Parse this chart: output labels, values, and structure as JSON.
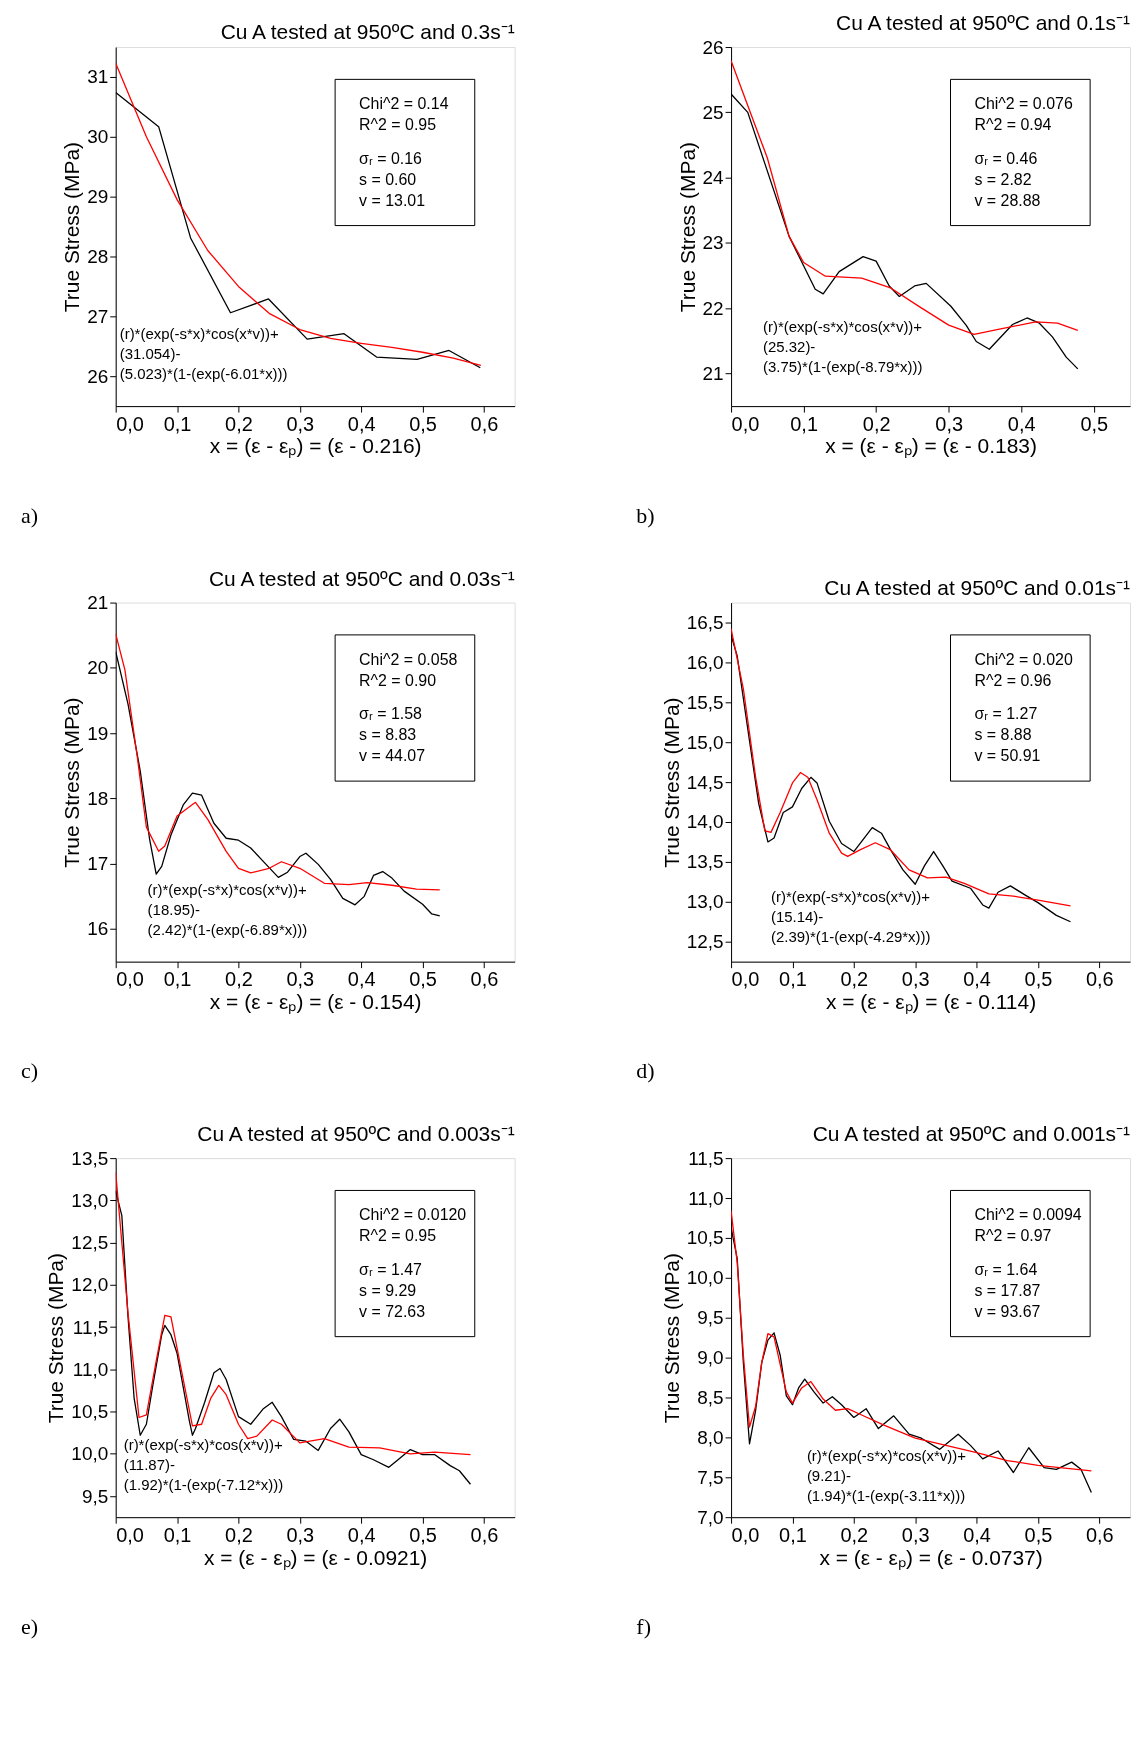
{
  "chart_data": [
    {
      "type": "line",
      "title": "Cu A tested at 950ºC and 0.3s⁻¹",
      "xlabel": "x = (ε  - εₚ) = (ε - 0.216)",
      "ylabel": "True Stress (MPa)",
      "xlim": [
        0,
        0.65
      ],
      "ylim": [
        25.5,
        31.5
      ],
      "xticks": [
        {
          "value": 0,
          "label": "0,0"
        },
        {
          "value": 0.1,
          "label": "0,1"
        },
        {
          "value": 0.2,
          "label": "0,2"
        },
        {
          "value": 0.3,
          "label": "0,3"
        },
        {
          "value": 0.4,
          "label": "0,4"
        },
        {
          "value": 0.5,
          "label": "0,5"
        },
        {
          "value": 0.6,
          "label": "0,6"
        }
      ],
      "yticks": [
        26,
        27,
        28,
        29,
        30,
        31
      ],
      "grid": false,
      "legend": false,
      "marker": "none",
      "line_style": "solid",
      "series": [
        {
          "color": "#000000",
          "x": [
            0,
            0.07,
            0.122,
            0.187,
            0.249,
            0.312,
            0.372,
            0.425,
            0.491,
            0.543,
            0.594
          ],
          "values": [
            30.74,
            30.17,
            28.31,
            27.06,
            27.29,
            26.62,
            26.71,
            26.32,
            26.28,
            26.43,
            26.14
          ]
        },
        {
          "color": "#ff0000",
          "x": [
            0,
            0.05,
            0.1,
            0.15,
            0.2,
            0.25,
            0.3,
            0.35,
            0.4,
            0.45,
            0.5,
            0.55,
            0.595
          ],
          "values": [
            31.23,
            30.0,
            28.95,
            28.1,
            27.5,
            27.05,
            26.78,
            26.63,
            26.55,
            26.48,
            26.4,
            26.3,
            26.18
          ]
        }
      ],
      "annotations": [
        "Chi^2 = 0.14",
        "R^2 = 0.95",
        "σᵣ = 0.16",
        "s = 0.60",
        "v = 13.01",
        "(r)*(exp(-s*x)*cos(x*v))+",
        "(31.054)-",
        "(5.023)*(1-(exp(-6.01*x)))",
        "a)"
      ]
    },
    {
      "type": "line",
      "title": "Cu A tested at 950ºC and 0.1s⁻¹",
      "xlabel": "x = (ε  - εₚ) = (ε - 0.183)",
      "ylabel": "True Stress (MPa)",
      "xlim": [
        0,
        0.55
      ],
      "ylim": [
        20.5,
        26
      ],
      "xticks": [
        {
          "value": 0,
          "label": "0,0"
        },
        {
          "value": 0.1,
          "label": "0,1"
        },
        {
          "value": 0.2,
          "label": "0,2"
        },
        {
          "value": 0.3,
          "label": "0,3"
        },
        {
          "value": 0.4,
          "label": "0,4"
        },
        {
          "value": 0.5,
          "label": "0,5"
        }
      ],
      "yticks": [
        21,
        22,
        23,
        24,
        25,
        26
      ],
      "grid": false,
      "legend": false,
      "marker": "none",
      "line_style": "solid",
      "series": [
        {
          "color": "#000000",
          "x": [
            0,
            0.023,
            0.08,
            0.116,
            0.127,
            0.149,
            0.182,
            0.2,
            0.218,
            0.232,
            0.253,
            0.269,
            0.303,
            0.324,
            0.338,
            0.356,
            0.388,
            0.408,
            0.425,
            0.443,
            0.462,
            0.478
          ],
          "values": [
            25.28,
            25.0,
            23.1,
            22.29,
            22.22,
            22.56,
            22.79,
            22.72,
            22.34,
            22.18,
            22.34,
            22.38,
            22.03,
            21.74,
            21.49,
            21.37,
            21.75,
            21.85,
            21.77,
            21.56,
            21.25,
            21.07
          ]
        },
        {
          "color": "#ff0000",
          "x": [
            0,
            0.05,
            0.08,
            0.1,
            0.13,
            0.18,
            0.22,
            0.26,
            0.3,
            0.335,
            0.37,
            0.42,
            0.45,
            0.478
          ],
          "values": [
            25.79,
            24.3,
            23.1,
            22.7,
            22.49,
            22.46,
            22.31,
            22.02,
            21.74,
            21.6,
            21.68,
            21.79,
            21.77,
            21.66
          ]
        }
      ],
      "annotations": [
        "Chi^2 = 0.076",
        "R^2 = 0.94",
        "σᵣ = 0.46",
        "s = 2.82",
        "v = 28.88",
        "(r)*(exp(-s*x)*cos(x*v))+",
        "(25.32)-",
        "(3.75)*(1-(exp(-8.79*x)))",
        "b)"
      ]
    },
    {
      "type": "line",
      "title": "Cu A tested at 950ºC and 0.03s⁻¹",
      "xlabel": "x = (ε  - εₚ) = (ε - 0.154)",
      "ylabel": "True Stress (MPa)",
      "xlim": [
        0,
        0.65
      ],
      "ylim": [
        15.5,
        21
      ],
      "xticks": [
        {
          "value": 0,
          "label": "0,0"
        },
        {
          "value": 0.1,
          "label": "0,1"
        },
        {
          "value": 0.2,
          "label": "0,2"
        },
        {
          "value": 0.3,
          "label": "0,3"
        },
        {
          "value": 0.4,
          "label": "0,4"
        },
        {
          "value": 0.5,
          "label": "0,5"
        },
        {
          "value": 0.6,
          "label": "0,6"
        }
      ],
      "yticks": [
        16,
        17,
        18,
        19,
        20,
        21
      ],
      "grid": false,
      "legend": false,
      "marker": "none",
      "line_style": "solid",
      "series": [
        {
          "color": "#000000",
          "x": [
            0,
            0.02,
            0.04,
            0.055,
            0.066,
            0.075,
            0.09,
            0.11,
            0.125,
            0.14,
            0.16,
            0.18,
            0.2,
            0.22,
            0.24,
            0.265,
            0.28,
            0.3,
            0.31,
            0.33,
            0.35,
            0.37,
            0.39,
            0.405,
            0.42,
            0.435,
            0.45,
            0.47,
            0.5,
            0.515,
            0.528
          ],
          "values": [
            20.25,
            19.45,
            18.42,
            17.39,
            16.84,
            16.96,
            17.44,
            17.9,
            18.08,
            18.05,
            17.62,
            17.39,
            17.36,
            17.24,
            17.04,
            16.79,
            16.87,
            17.11,
            17.16,
            16.99,
            16.76,
            16.47,
            16.37,
            16.5,
            16.82,
            16.88,
            16.78,
            16.58,
            16.38,
            16.23,
            16.2
          ]
        },
        {
          "color": "#ff0000",
          "x": [
            0,
            0.015,
            0.035,
            0.05,
            0.07,
            0.08,
            0.1,
            0.13,
            0.15,
            0.18,
            0.2,
            0.22,
            0.25,
            0.27,
            0.3,
            0.34,
            0.38,
            0.41,
            0.45,
            0.49,
            0.528
          ],
          "values": [
            20.52,
            19.97,
            18.65,
            17.56,
            17.19,
            17.27,
            17.73,
            17.94,
            17.68,
            17.19,
            16.93,
            16.86,
            16.93,
            17.03,
            16.93,
            16.7,
            16.68,
            16.71,
            16.67,
            16.61,
            16.6
          ]
        }
      ],
      "annotations": [
        "Chi^2 = 0.058",
        "R^2 = 0.90",
        "σᵣ = 1.58",
        "s = 8.83",
        "v = 44.07",
        "(r)*(exp(-s*x)*cos(x*v))+",
        "(18.95)-",
        "(2.42)*(1-(exp(-6.89*x)))",
        "c)"
      ]
    },
    {
      "type": "line",
      "title": "Cu A tested at 950ºC and 0.01s⁻¹",
      "xlabel": "x = (ε  - εₚ) = (ε - 0.114)",
      "ylabel": "True Stress (MPa)",
      "xlim": [
        0,
        0.65
      ],
      "ylim": [
        12.25,
        16.75
      ],
      "xticks": [
        {
          "value": 0,
          "label": "0,0"
        },
        {
          "value": 0.1,
          "label": "0,1"
        },
        {
          "value": 0.2,
          "label": "0,2"
        },
        {
          "value": 0.3,
          "label": "0,3"
        },
        {
          "value": 0.4,
          "label": "0,4"
        },
        {
          "value": 0.5,
          "label": "0,5"
        },
        {
          "value": 0.6,
          "label": "0,6"
        }
      ],
      "yticks": [
        {
          "value": 12.5,
          "label": "12,5"
        },
        {
          "value": 13,
          "label": "13,0"
        },
        {
          "value": 13.5,
          "label": "13,5"
        },
        {
          "value": 14,
          "label": "14,0"
        },
        {
          "value": 14.5,
          "label": "14,5"
        },
        {
          "value": 15,
          "label": "15,0"
        },
        {
          "value": 15.5,
          "label": "15,5"
        },
        {
          "value": 16,
          "label": "16,0"
        },
        {
          "value": 16.5,
          "label": "16,5"
        }
      ],
      "grid": false,
      "legend": false,
      "marker": "none",
      "line_style": "solid",
      "series": [
        {
          "color": "#000000",
          "x": [
            0,
            0.01,
            0.03,
            0.045,
            0.06,
            0.07,
            0.085,
            0.1,
            0.115,
            0.13,
            0.14,
            0.16,
            0.18,
            0.2,
            0.21,
            0.23,
            0.245,
            0.26,
            0.28,
            0.3,
            0.315,
            0.33,
            0.345,
            0.36,
            0.39,
            0.41,
            0.42,
            0.435,
            0.455,
            0.48,
            0.5,
            0.53,
            0.553
          ],
          "values": [
            16.34,
            16.08,
            15.02,
            14.23,
            13.75,
            13.8,
            14.12,
            14.19,
            14.42,
            14.56,
            14.49,
            14.01,
            13.73,
            13.63,
            13.73,
            13.93,
            13.86,
            13.65,
            13.4,
            13.22,
            13.45,
            13.63,
            13.45,
            13.26,
            13.17,
            12.96,
            12.92,
            13.12,
            13.2,
            13.08,
            12.99,
            12.83,
            12.75
          ]
        },
        {
          "color": "#ff0000",
          "x": [
            0,
            0.02,
            0.04,
            0.055,
            0.065,
            0.08,
            0.1,
            0.113,
            0.125,
            0.14,
            0.16,
            0.18,
            0.19,
            0.21,
            0.235,
            0.26,
            0.29,
            0.32,
            0.35,
            0.38,
            0.42,
            0.46,
            0.5,
            0.553
          ],
          "values": [
            16.42,
            15.67,
            14.56,
            13.89,
            13.87,
            14.12,
            14.49,
            14.62,
            14.56,
            14.28,
            13.86,
            13.61,
            13.57,
            13.65,
            13.74,
            13.65,
            13.4,
            13.3,
            13.31,
            13.23,
            13.1,
            13.07,
            13.02,
            12.95
          ]
        }
      ],
      "annotations": [
        "Chi^2 = 0.020",
        "R^2 = 0.96",
        "σᵣ = 1.27",
        "s = 8.88",
        "v = 50.91",
        "(r)*(exp(-s*x)*cos(x*v))+",
        "(15.14)-",
        "(2.39)*(1-(exp(-4.29*x)))",
        "d)"
      ]
    },
    {
      "type": "line",
      "title": "Cu A tested at 950ºC and 0.003s⁻¹",
      "xlabel": "x = (ε  - εₚ) = (ε - 0.0921)",
      "ylabel": "True Stress (MPa)",
      "xlim": [
        0,
        0.65
      ],
      "ylim": [
        9.25,
        13.5
      ],
      "xticks": [
        {
          "value": 0,
          "label": "0,0"
        },
        {
          "value": 0.1,
          "label": "0,1"
        },
        {
          "value": 0.2,
          "label": "0,2"
        },
        {
          "value": 0.3,
          "label": "0,3"
        },
        {
          "value": 0.4,
          "label": "0,4"
        },
        {
          "value": 0.5,
          "label": "0,5"
        },
        {
          "value": 0.6,
          "label": "0,6"
        }
      ],
      "yticks": [
        {
          "value": 9.5,
          "label": "9,5"
        },
        {
          "value": 10,
          "label": "10,0"
        },
        {
          "value": 10.5,
          "label": "10,5"
        },
        {
          "value": 11,
          "label": "11,0"
        },
        {
          "value": 11.5,
          "label": "11,5"
        },
        {
          "value": 12,
          "label": "12,0"
        },
        {
          "value": 12.5,
          "label": "12,5"
        },
        {
          "value": 13,
          "label": "13,0"
        },
        {
          "value": 13.5,
          "label": "13,5"
        }
      ],
      "grid": false,
      "legend": false,
      "marker": "none",
      "line_style": "solid",
      "series": [
        {
          "color": "#000000",
          "x": [
            0,
            0.01,
            0.02,
            0.03,
            0.04,
            0.05,
            0.06,
            0.075,
            0.08,
            0.09,
            0.1,
            0.11,
            0.12,
            0.125,
            0.13,
            0.145,
            0.16,
            0.17,
            0.18,
            0.2,
            0.22,
            0.24,
            0.255,
            0.27,
            0.29,
            0.31,
            0.33,
            0.35,
            0.365,
            0.38,
            0.4,
            0.42,
            0.445,
            0.46,
            0.48,
            0.5,
            0.52,
            0.545,
            0.56,
            0.578
          ],
          "values": [
            13.11,
            12.82,
            11.63,
            10.66,
            10.22,
            10.35,
            10.79,
            11.41,
            11.52,
            11.41,
            11.19,
            10.79,
            10.39,
            10.22,
            10.3,
            10.61,
            10.96,
            11.01,
            10.88,
            10.44,
            10.35,
            10.53,
            10.61,
            10.44,
            10.17,
            10.15,
            10.04,
            10.3,
            10.41,
            10.26,
            9.99,
            9.93,
            9.84,
            9.93,
            10.05,
            9.99,
            9.99,
            9.86,
            9.8,
            9.64
          ]
        },
        {
          "color": "#ff0000",
          "x": [
            0,
            0.02,
            0.038,
            0.05,
            0.065,
            0.08,
            0.09,
            0.11,
            0.125,
            0.14,
            0.155,
            0.168,
            0.18,
            0.2,
            0.215,
            0.23,
            0.255,
            0.27,
            0.3,
            0.34,
            0.38,
            0.43,
            0.48,
            0.52,
            0.578
          ],
          "values": [
            13.33,
            11.67,
            10.43,
            10.46,
            11.06,
            11.64,
            11.62,
            10.88,
            10.33,
            10.35,
            10.66,
            10.81,
            10.7,
            10.35,
            10.18,
            10.21,
            10.4,
            10.35,
            10.13,
            10.18,
            10.08,
            10.07,
            10.0,
            10.02,
            9.99
          ]
        }
      ],
      "annotations": [
        "Chi^2 = 0.0120",
        "R^2 = 0.95",
        "σᵣ = 1.47",
        "s = 9.29",
        "v = 72.63",
        "(r)*(exp(-s*x)*cos(x*v))+",
        "(11.87)-",
        "(1.92)*(1-(exp(-7.12*x)))",
        "e)"
      ]
    },
    {
      "type": "line",
      "title": "Cu A tested at 950ºC and 0.001s⁻¹",
      "xlabel": "x = (ε  - εₚ) = (ε - 0.0737)",
      "ylabel": "True Stress (MPa)",
      "xlim": [
        0,
        0.65
      ],
      "ylim": [
        7.0,
        11.5
      ],
      "xticks": [
        {
          "value": 0,
          "label": "0,0"
        },
        {
          "value": 0.1,
          "label": "0,1"
        },
        {
          "value": 0.2,
          "label": "0,2"
        },
        {
          "value": 0.3,
          "label": "0,3"
        },
        {
          "value": 0.4,
          "label": "0,4"
        },
        {
          "value": 0.5,
          "label": "0,5"
        },
        {
          "value": 0.6,
          "label": "0,6"
        }
      ],
      "yticks": [
        {
          "value": 7,
          "label": "7,0"
        },
        {
          "value": 7.5,
          "label": "7,5"
        },
        {
          "value": 8,
          "label": "8,0"
        },
        {
          "value": 8.5,
          "label": "8,5"
        },
        {
          "value": 9,
          "label": "9,0"
        },
        {
          "value": 9.5,
          "label": "9,5"
        },
        {
          "value": 10,
          "label": "10,0"
        },
        {
          "value": 10.5,
          "label": "10,5"
        },
        {
          "value": 11,
          "label": "11,0"
        },
        {
          "value": 11.5,
          "label": "11,5"
        }
      ],
      "grid": false,
      "legend": false,
      "marker": "none",
      "line_style": "solid",
      "series": [
        {
          "color": "#000000",
          "x": [
            0,
            0.01,
            0.02,
            0.03,
            0.04,
            0.05,
            0.06,
            0.07,
            0.08,
            0.09,
            0.1,
            0.11,
            0.12,
            0.135,
            0.15,
            0.165,
            0.18,
            0.2,
            0.22,
            0.24,
            0.265,
            0.29,
            0.31,
            0.34,
            0.37,
            0.39,
            0.41,
            0.435,
            0.46,
            0.485,
            0.51,
            0.53,
            0.555,
            0.57,
            0.587
          ],
          "values": [
            10.63,
            10.24,
            8.94,
            7.92,
            8.34,
            8.94,
            9.22,
            9.31,
            9.03,
            8.52,
            8.41,
            8.62,
            8.73,
            8.57,
            8.43,
            8.51,
            8.41,
            8.25,
            8.36,
            8.11,
            8.27,
            8.04,
            7.99,
            7.85,
            8.04,
            7.9,
            7.73,
            7.83,
            7.56,
            7.87,
            7.62,
            7.6,
            7.69,
            7.6,
            7.31
          ]
        },
        {
          "color": "#ff0000",
          "x": [
            0,
            0.01,
            0.02,
            0.03,
            0.04,
            0.05,
            0.06,
            0.07,
            0.09,
            0.1,
            0.115,
            0.13,
            0.15,
            0.17,
            0.19,
            0.21,
            0.25,
            0.3,
            0.35,
            0.4,
            0.45,
            0.5,
            0.587
          ],
          "values": [
            10.84,
            10.19,
            9.03,
            8.13,
            8.39,
            8.94,
            9.3,
            9.26,
            8.57,
            8.43,
            8.62,
            8.7,
            8.48,
            8.34,
            8.36,
            8.29,
            8.15,
            7.99,
            7.9,
            7.81,
            7.71,
            7.65,
            7.58
          ]
        }
      ],
      "annotations": [
        "Chi^2 = 0.0094",
        "R^2 = 0.97",
        "σᵣ = 1.64",
        "s = 17.87",
        "v = 93.67",
        "(r)*(exp(-s*x)*cos(x*v))+",
        "(9.21)-",
        "(1.94)*(1-(exp(-3.11*x)))",
        "f)"
      ]
    }
  ]
}
